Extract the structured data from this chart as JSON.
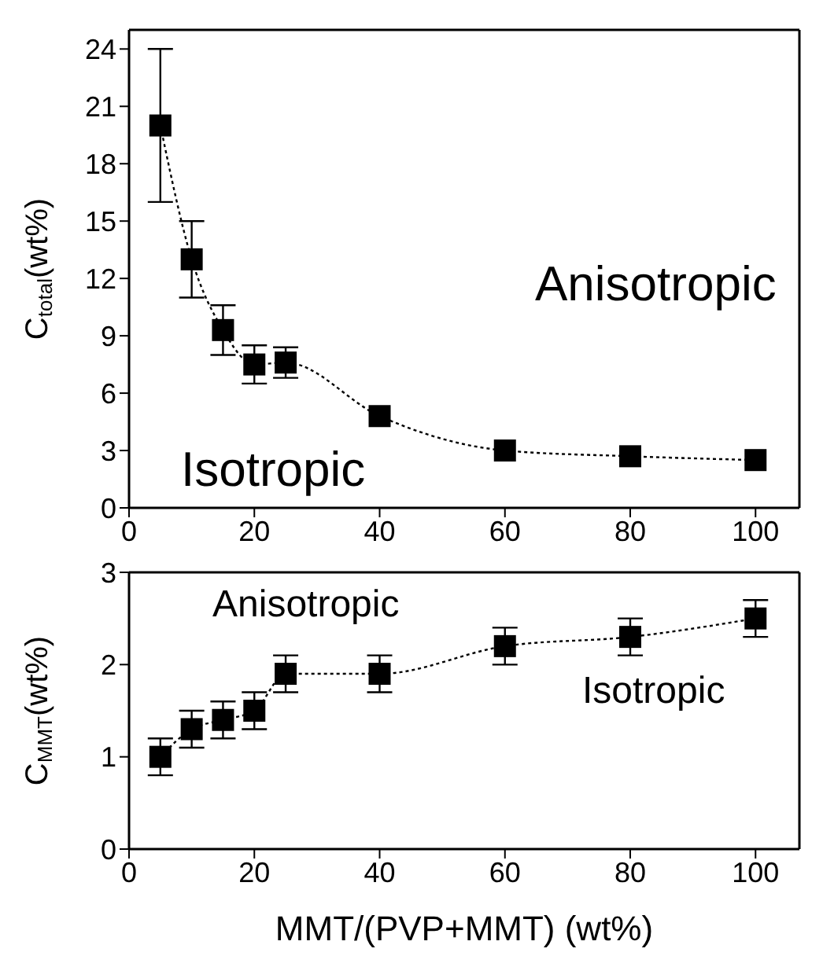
{
  "chart_data": [
    {
      "type": "line",
      "ylabel": "C$_{total}$(wt%)",
      "x": [
        5,
        10,
        15,
        20,
        25,
        40,
        60,
        80,
        100
      ],
      "xlim": [
        0,
        107
      ],
      "xticks": [
        0,
        20,
        40,
        60,
        80,
        100
      ],
      "ylim": [
        0,
        25
      ],
      "yticks": [
        0,
        3,
        6,
        9,
        12,
        15,
        18,
        21,
        24
      ],
      "marker": "square",
      "line_style": "dotted",
      "annotations": [
        "Anisotropic",
        "Isotropic"
      ],
      "series": [
        {
          "color": "#000000",
          "values": [
            20,
            13,
            9.3,
            7.5,
            7.6,
            4.8,
            3.0,
            2.7,
            2.5
          ],
          "errors": [
            4,
            2,
            [
              8,
              10.6
            ],
            1,
            [
              6.8,
              8.4
            ],
            null,
            null,
            null,
            null
          ]
        }
      ]
    },
    {
      "type": "line",
      "ylabel": "C$_{MMT}$(wt%)",
      "xlabel": "MMT/(PVP+MMT) (wt%)",
      "x": [
        5,
        10,
        15,
        20,
        25,
        40,
        60,
        80,
        100
      ],
      "xlim": [
        0,
        107
      ],
      "xticks": [
        0,
        20,
        40,
        60,
        80,
        100
      ],
      "ylim": [
        0,
        3
      ],
      "yticks": [
        0,
        1,
        2,
        3
      ],
      "marker": "square",
      "line_style": "dotted",
      "annotations": [
        "Anisotropic",
        "Isotropic"
      ],
      "series": [
        {
          "color": "#000000",
          "values": [
            1.0,
            1.3,
            1.4,
            1.5,
            1.9,
            1.9,
            2.2,
            2.3,
            2.5
          ],
          "errors": [
            0.2,
            0.2,
            0.2,
            0.2,
            0.2,
            0.2,
            0.2,
            0.2,
            0.2
          ]
        }
      ]
    }
  ]
}
